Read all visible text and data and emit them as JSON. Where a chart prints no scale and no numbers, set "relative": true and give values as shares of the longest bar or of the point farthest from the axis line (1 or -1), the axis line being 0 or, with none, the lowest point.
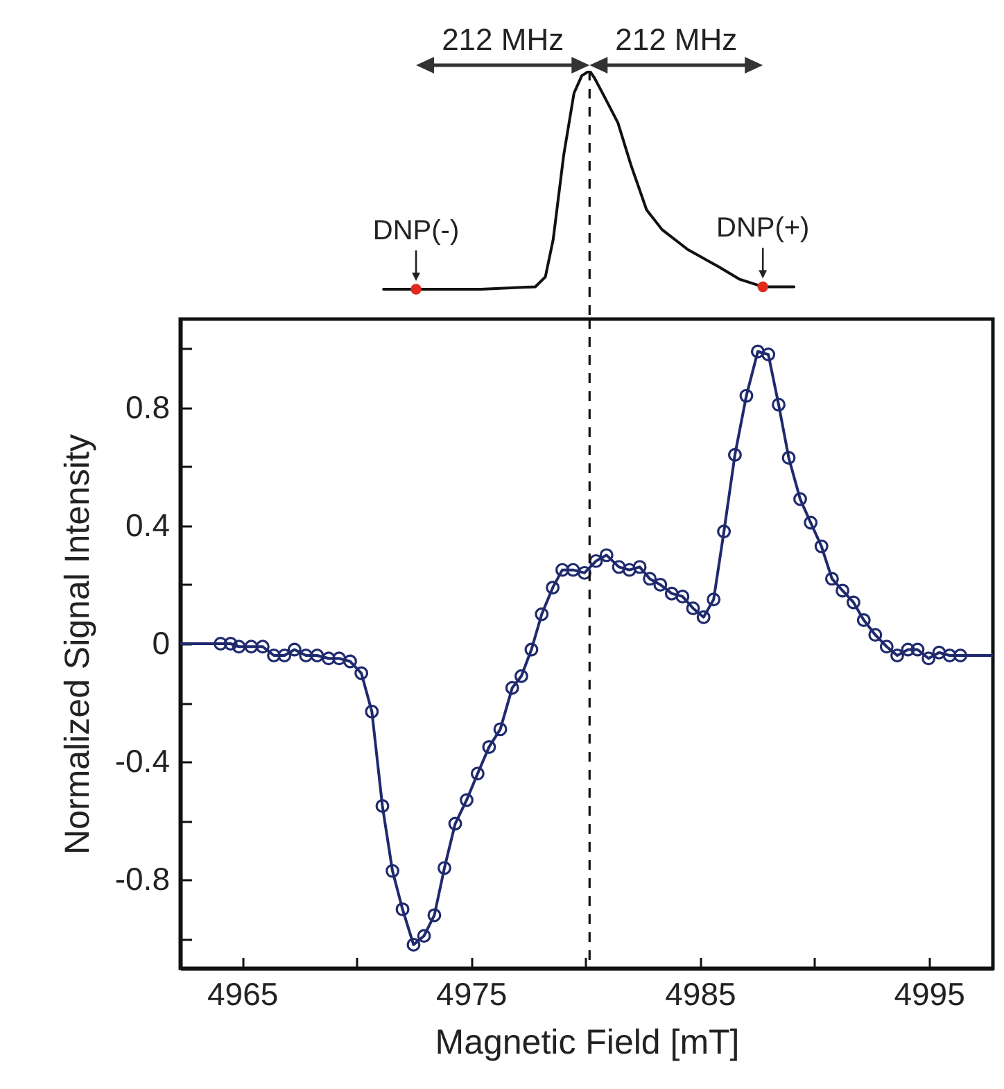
{
  "chart_data": [
    {
      "type": "line",
      "relative": true,
      "xlim": [
        4962.3,
        4997.8
      ],
      "tick_labels": false,
      "marker": "none",
      "line_style": "solid",
      "grid": false,
      "series": [
        {
          "color": "#111111",
          "x": [
            4971.18,
            4972.6,
            4975.43,
            4977.81,
            4978.25,
            4978.59,
            4979.05,
            4979.5,
            4979.84,
            4980.18,
            4980.4,
            4980.86,
            4981.42,
            4981.99,
            4982.67,
            4983.35,
            4984.47,
            4985.83,
            4986.74,
            4987.75,
            4989.11
          ],
          "values": [
            0.12,
            0.12,
            0.12,
            0.13,
            0.17,
            0.32,
            0.66,
            0.91,
            0.98,
            1.0,
            0.97,
            0.89,
            0.79,
            0.62,
            0.44,
            0.36,
            0.28,
            0.21,
            0.16,
            0.13,
            0.13
          ]
        },
        {
          "type": "scatter",
          "marker": "circle",
          "color": "#e02a1e",
          "x": [
            4972.6,
            4987.75
          ],
          "values": [
            0.12,
            0.13
          ]
        }
      ],
      "ref_lines": [
        {
          "axis": "x",
          "value": 4980.18,
          "line_style": "dashed",
          "color": "#111111"
        }
      ],
      "annotations": [
        "212 MHz",
        "212 MHz",
        {
          "text": "DNP(-)",
          "x": 4972.6,
          "y": 0.12
        },
        {
          "text": "DNP(+)",
          "x": 4987.75,
          "y": 0.13
        }
      ]
    },
    {
      "type": "line",
      "xlabel": "Magnetic Field [mT]",
      "ylabel": "Normalized Signal Intensity",
      "xlim": [
        4962.3,
        4997.8
      ],
      "ylim": [
        -1.1,
        1.1
      ],
      "marker": "circle",
      "line_style": "solid",
      "grid": false,
      "xticks": [
        4965,
        {
          "value": 4970,
          "label": null
        },
        4975,
        {
          "value": 4980,
          "label": null
        },
        4985,
        {
          "value": 4990,
          "label": null
        },
        4995
      ],
      "yticks": [
        {
          "value": -1.0,
          "label": null
        },
        -0.8,
        {
          "value": -0.6,
          "label": null
        },
        -0.4,
        {
          "value": -0.2,
          "label": null
        },
        0,
        {
          "value": 0.2,
          "label": null
        },
        0.4,
        {
          "value": 0.6,
          "label": null
        },
        0.8,
        {
          "value": 1.0,
          "label": null
        }
      ],
      "tick_labels": true,
      "series": [
        {
          "color": "#1f2a6e",
          "x": [
            4964.06,
            4964.5,
            4964.86,
            4965.4,
            4965.9,
            4966.39,
            4966.85,
            4967.29,
            4967.79,
            4968.28,
            4968.78,
            4969.24,
            4969.72,
            4970.21,
            4970.67,
            4971.13,
            4971.57,
            4972.01,
            4972.49,
            4972.95,
            4973.4,
            4973.84,
            4974.31,
            4974.81,
            4975.29,
            4975.79,
            4976.28,
            4976.8,
            4977.2,
            4977.64,
            4978.09,
            4978.57,
            4978.99,
            4979.46,
            4979.96,
            4980.46,
            4980.92,
            4981.46,
            4981.92,
            4982.37,
            4982.81,
            4983.27,
            4983.77,
            4984.24,
            4984.7,
            4985.16,
            4985.6,
            4986.05,
            4986.53,
            4987.03,
            4987.53,
            4987.99,
            4988.44,
            4988.88,
            4989.38,
            4989.84,
            4990.31,
            4990.77,
            4991.23,
            4991.71,
            4992.16,
            4992.66,
            4993.16,
            4993.62,
            4994.09,
            4994.51,
            4994.99,
            4995.45,
            4995.91,
            4996.38
          ],
          "values": [
            0.0,
            0.0,
            -0.01,
            -0.01,
            -0.01,
            -0.04,
            -0.04,
            -0.02,
            -0.04,
            -0.04,
            -0.05,
            -0.05,
            -0.06,
            -0.1,
            -0.23,
            -0.55,
            -0.77,
            -0.9,
            -1.02,
            -0.99,
            -0.92,
            -0.76,
            -0.61,
            -0.53,
            -0.44,
            -0.35,
            -0.29,
            -0.15,
            -0.11,
            -0.02,
            0.1,
            0.19,
            0.25,
            0.25,
            0.24,
            0.28,
            0.3,
            0.26,
            0.25,
            0.26,
            0.22,
            0.2,
            0.17,
            0.16,
            0.12,
            0.09,
            0.15,
            0.38,
            0.64,
            0.84,
            0.99,
            0.98,
            0.81,
            0.63,
            0.49,
            0.41,
            0.33,
            0.22,
            0.18,
            0.14,
            0.08,
            0.03,
            -0.01,
            -0.04,
            -0.02,
            -0.02,
            -0.05,
            -0.03,
            -0.04,
            -0.04
          ]
        },
        {
          "color": "#1f2a6e",
          "marker": "none",
          "x": [
            4962.3,
            4964.06,
            4980.0,
            4996.38,
            4997.8
          ],
          "values": [
            0.0,
            0.0,
            null,
            -0.04,
            -0.04
          ]
        }
      ],
      "ref_lines": [
        {
          "axis": "x",
          "value": 4980.18,
          "line_style": "dashed",
          "color": "#111111"
        }
      ]
    }
  ]
}
